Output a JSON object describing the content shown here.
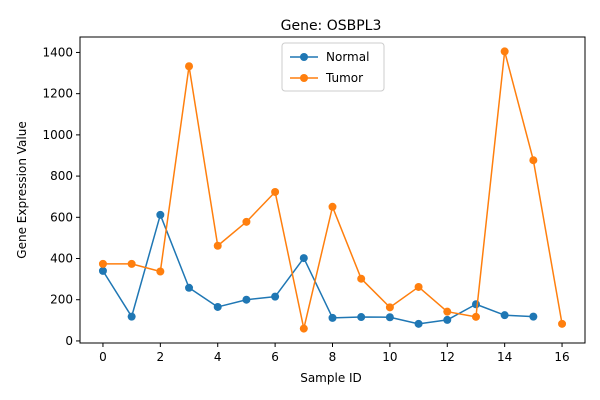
{
  "chart_data": {
    "type": "line",
    "title": "Gene: OSBPL3",
    "xlabel": "Sample ID",
    "ylabel": "Gene Expression Value",
    "xlim": [
      -0.8,
      16.8
    ],
    "ylim": [
      -10,
      1475
    ],
    "xticks": [
      0,
      2,
      4,
      6,
      8,
      10,
      12,
      14,
      16
    ],
    "yticks": [
      0,
      200,
      400,
      600,
      800,
      1000,
      1200,
      1400
    ],
    "grid": false,
    "legend_position": "top-center",
    "series": [
      {
        "name": "Normal",
        "color": "#1f77b4",
        "x": [
          0,
          1,
          2,
          3,
          4,
          5,
          6,
          7,
          8,
          9,
          10,
          11,
          12,
          13,
          14,
          15
        ],
        "y": [
          340,
          118,
          612,
          258,
          165,
          200,
          215,
          402,
          112,
          116,
          115,
          83,
          102,
          178,
          125,
          118
        ]
      },
      {
        "name": "Tumor",
        "color": "#ff7f0e",
        "x": [
          0,
          1,
          2,
          3,
          4,
          5,
          6,
          7,
          8,
          9,
          10,
          11,
          12,
          13,
          14,
          15,
          16
        ],
        "y": [
          374,
          374,
          337,
          1333,
          462,
          578,
          723,
          60,
          651,
          302,
          163,
          262,
          142,
          117,
          1405,
          877,
          83
        ]
      }
    ]
  }
}
